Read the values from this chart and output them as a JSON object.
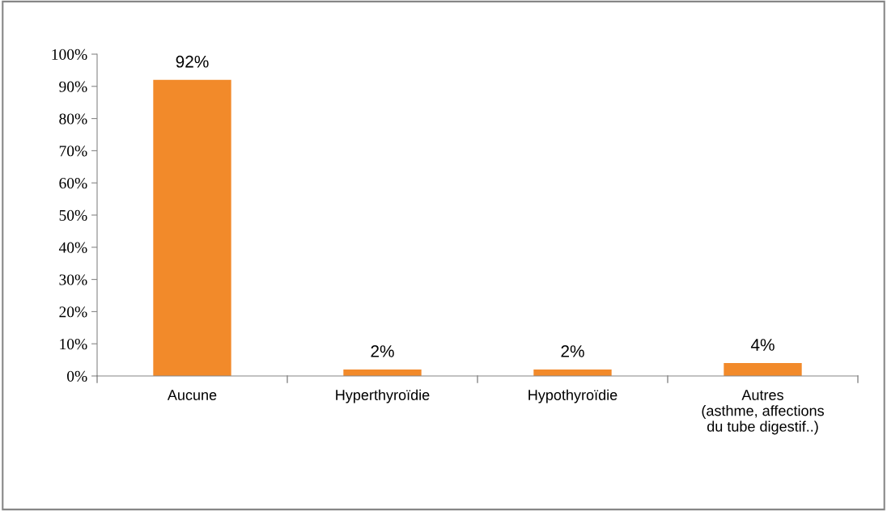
{
  "chart_data": {
    "type": "bar",
    "categories": [
      "Aucune",
      "Hyperthyroïdie",
      "Hypothyroïdie",
      "Autres\n(asthme, affections\ndu tube digestif..)"
    ],
    "values": [
      92,
      2,
      2,
      4
    ],
    "value_labels": [
      "92%",
      "2%",
      "2%",
      "4%"
    ],
    "color": "#f28a2a",
    "ylim": [
      0,
      100
    ],
    "yticks": [
      {
        "value": 0,
        "label": "0%"
      },
      {
        "value": 10,
        "label": "10%"
      },
      {
        "value": 20,
        "label": "20%"
      },
      {
        "value": 30,
        "label": "30%"
      },
      {
        "value": 40,
        "label": "40%"
      },
      {
        "value": 50,
        "label": "50%"
      },
      {
        "value": 60,
        "label": "60%"
      },
      {
        "value": 70,
        "label": "70%"
      },
      {
        "value": 80,
        "label": "80%"
      },
      {
        "value": 90,
        "label": "90%"
      },
      {
        "value": 100,
        "label": "100%"
      }
    ],
    "grid": false,
    "legend": false
  }
}
